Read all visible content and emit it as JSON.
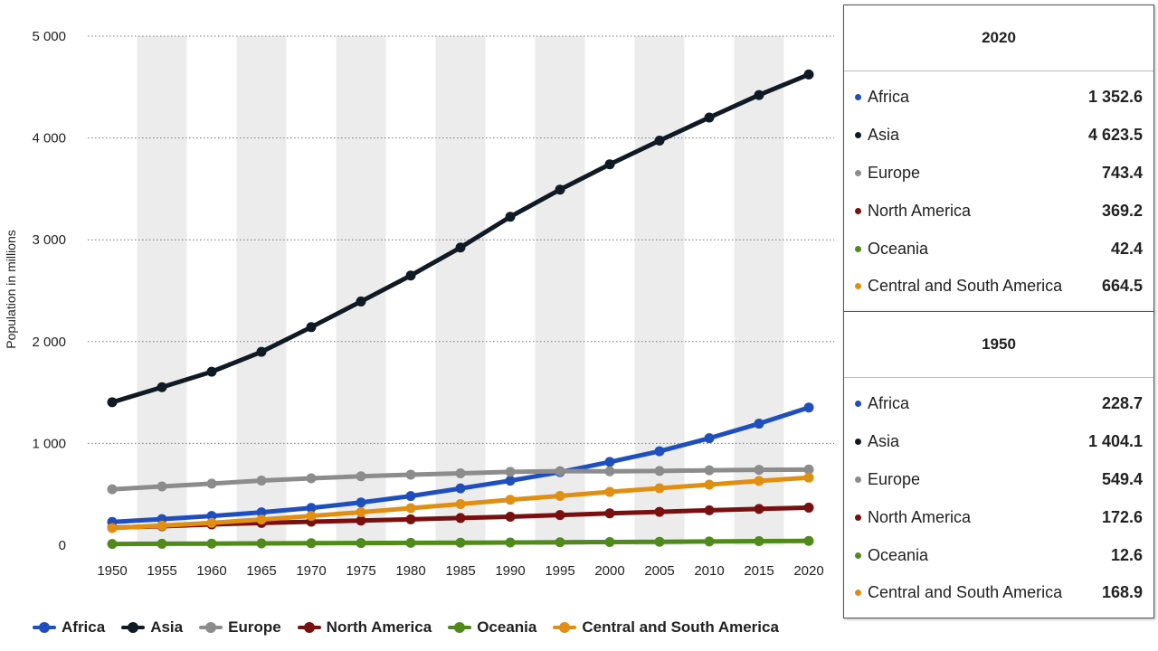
{
  "chart_data": {
    "type": "line",
    "title": "",
    "xlabel": "",
    "ylabel": "Population in millions",
    "ylim": [
      0,
      5000
    ],
    "yticks": [
      0,
      1000,
      2000,
      3000,
      4000,
      5000
    ],
    "ytick_labels": [
      "0",
      "1 000",
      "2 000",
      "3 000",
      "4 000",
      "5 000"
    ],
    "x": [
      "1950",
      "1955",
      "1960",
      "1965",
      "1970",
      "1975",
      "1980",
      "1985",
      "1990",
      "1995",
      "2000",
      "2005",
      "2010",
      "2015",
      "2020"
    ],
    "series": [
      {
        "name": "Africa",
        "color": "#1f4fbf",
        "values": [
          228.7,
          256,
          287,
          323,
          366,
          420,
          483,
          558,
          634,
          718,
          818,
          923,
          1051,
          1194,
          1352.6
        ]
      },
      {
        "name": "Asia",
        "color": "#0f1a24",
        "values": [
          1404.1,
          1552,
          1704,
          1899,
          2142,
          2394,
          2649,
          2924,
          3226,
          3493,
          3741,
          3974,
          4201,
          4422,
          4623.5
        ]
      },
      {
        "name": "Europe",
        "color": "#8c8c8c",
        "values": [
          549.4,
          577,
          605,
          635,
          657,
          677,
          693,
          706,
          721,
          727,
          726,
          729,
          736,
          741,
          743.4
        ]
      },
      {
        "name": "North America",
        "color": "#7a0f0f",
        "values": [
          172.6,
          187,
          204,
          219,
          231,
          242,
          254,
          267,
          280,
          296,
          313,
          328,
          343,
          356,
          369.2
        ]
      },
      {
        "name": "Oceania",
        "color": "#4f8a1a",
        "values": [
          12.6,
          14,
          15.8,
          17.5,
          19.7,
          21.5,
          22.9,
          24.9,
          27,
          29,
          31.4,
          33.8,
          37,
          39.7,
          42.4
        ]
      },
      {
        "name": "Central and South America",
        "color": "#e08f12",
        "values": [
          168.9,
          192,
          220,
          252,
          288,
          324,
          364,
          404,
          446,
          484,
          524,
          560,
          595,
          632,
          664.5
        ]
      }
    ],
    "legend_position": "bottom",
    "grid": "horizontal dotted"
  },
  "tooltips": [
    {
      "year": "2020",
      "rows": [
        {
          "name": "Africa",
          "value": "1 352.6",
          "color": "#1f4fbf"
        },
        {
          "name": "Asia",
          "value": "4 623.5",
          "color": "#0f1a24"
        },
        {
          "name": "Europe",
          "value": "743.4",
          "color": "#8c8c8c"
        },
        {
          "name": "North America",
          "value": "369.2",
          "color": "#7a0f0f"
        },
        {
          "name": "Oceania",
          "value": "42.4",
          "color": "#4f8a1a"
        },
        {
          "name": "Central and South America",
          "value": "664.5",
          "color": "#e08f12"
        }
      ]
    },
    {
      "year": "1950",
      "rows": [
        {
          "name": "Africa",
          "value": "228.7",
          "color": "#1f4fbf"
        },
        {
          "name": "Asia",
          "value": "1 404.1",
          "color": "#0f1a24"
        },
        {
          "name": "Europe",
          "value": "549.4",
          "color": "#8c8c8c"
        },
        {
          "name": "North America",
          "value": "172.6",
          "color": "#7a0f0f"
        },
        {
          "name": "Oceania",
          "value": "12.6",
          "color": "#4f8a1a"
        },
        {
          "name": "Central and South America",
          "value": "168.9",
          "color": "#e08f12"
        }
      ]
    }
  ]
}
